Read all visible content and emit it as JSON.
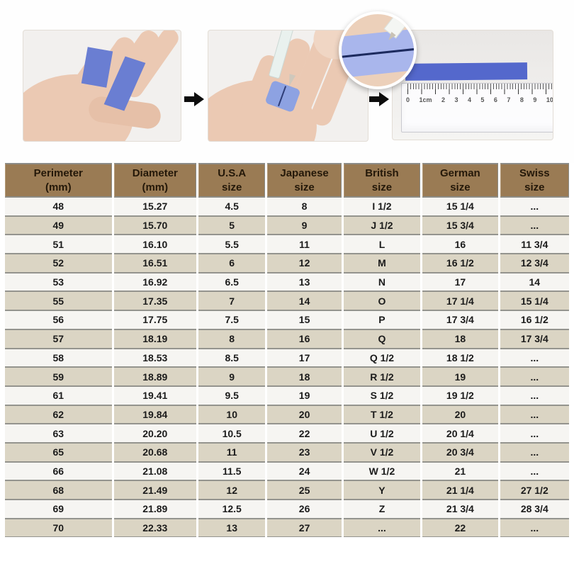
{
  "steps": {
    "arrow_icon": "arrow-right-icon",
    "step3": {
      "ruler_labels": [
        "0",
        "1cm",
        "2",
        "3",
        "4",
        "5",
        "6",
        "7",
        "8",
        "9",
        "10"
      ]
    }
  },
  "colors": {
    "table_header_bg": "#9a7b54",
    "table_header_text": "#241809",
    "row_light_bg": "#f6f5f2",
    "row_beige_bg": "#dbd5c4",
    "grid_line": "#94948e",
    "paper_strip_blue": "#6a7ed2",
    "finger_band_blue": "#8da2e2",
    "inset_band_blue": "#a9b6ec",
    "measured_strip_blue": "#5468cc",
    "skin_tone": "#ebc9b3"
  },
  "table": {
    "headers": [
      {
        "key": "perimeter",
        "line1": "Perimeter",
        "line2": "(mm)"
      },
      {
        "key": "diameter",
        "line1": "Diameter",
        "line2": "(mm)"
      },
      {
        "key": "usa",
        "line1": "U.S.A",
        "line2": "size"
      },
      {
        "key": "japanese",
        "line1": "Japanese",
        "line2": "size"
      },
      {
        "key": "british",
        "line1": "British",
        "line2": "size"
      },
      {
        "key": "german",
        "line1": "German",
        "line2": "size"
      },
      {
        "key": "swiss",
        "line1": "Swiss",
        "line2": "size"
      }
    ],
    "rows": [
      [
        "48",
        "15.27",
        "4.5",
        "8",
        "I 1/2",
        "15 1/4",
        "..."
      ],
      [
        "49",
        "15.70",
        "5",
        "9",
        "J 1/2",
        "15 3/4",
        "..."
      ],
      [
        "51",
        "16.10",
        "5.5",
        "11",
        "L",
        "16",
        "11 3/4"
      ],
      [
        "52",
        "16.51",
        "6",
        "12",
        "M",
        "16 1/2",
        "12 3/4"
      ],
      [
        "53",
        "16.92",
        "6.5",
        "13",
        "N",
        "17",
        "14"
      ],
      [
        "55",
        "17.35",
        "7",
        "14",
        "O",
        "17 1/4",
        "15 1/4"
      ],
      [
        "56",
        "17.75",
        "7.5",
        "15",
        "P",
        "17 3/4",
        "16 1/2"
      ],
      [
        "57",
        "18.19",
        "8",
        "16",
        "Q",
        "18",
        "17 3/4"
      ],
      [
        "58",
        "18.53",
        "8.5",
        "17",
        "Q 1/2",
        "18 1/2",
        "..."
      ],
      [
        "59",
        "18.89",
        "9",
        "18",
        "R 1/2",
        "19",
        "..."
      ],
      [
        "61",
        "19.41",
        "9.5",
        "19",
        "S 1/2",
        "19 1/2",
        "..."
      ],
      [
        "62",
        "19.84",
        "10",
        "20",
        "T 1/2",
        "20",
        "..."
      ],
      [
        "63",
        "20.20",
        "10.5",
        "22",
        "U 1/2",
        "20 1/4",
        "..."
      ],
      [
        "65",
        "20.68",
        "11",
        "23",
        "V 1/2",
        "20 3/4",
        "..."
      ],
      [
        "66",
        "21.08",
        "11.5",
        "24",
        "W 1/2",
        "21",
        "..."
      ],
      [
        "68",
        "21.49",
        "12",
        "25",
        "Y",
        "21 1/4",
        "27 1/2"
      ],
      [
        "69",
        "21.89",
        "12.5",
        "26",
        "Z",
        "21 3/4",
        "28 3/4"
      ],
      [
        "70",
        "22.33",
        "13",
        "27",
        "...",
        "22",
        "..."
      ]
    ]
  }
}
